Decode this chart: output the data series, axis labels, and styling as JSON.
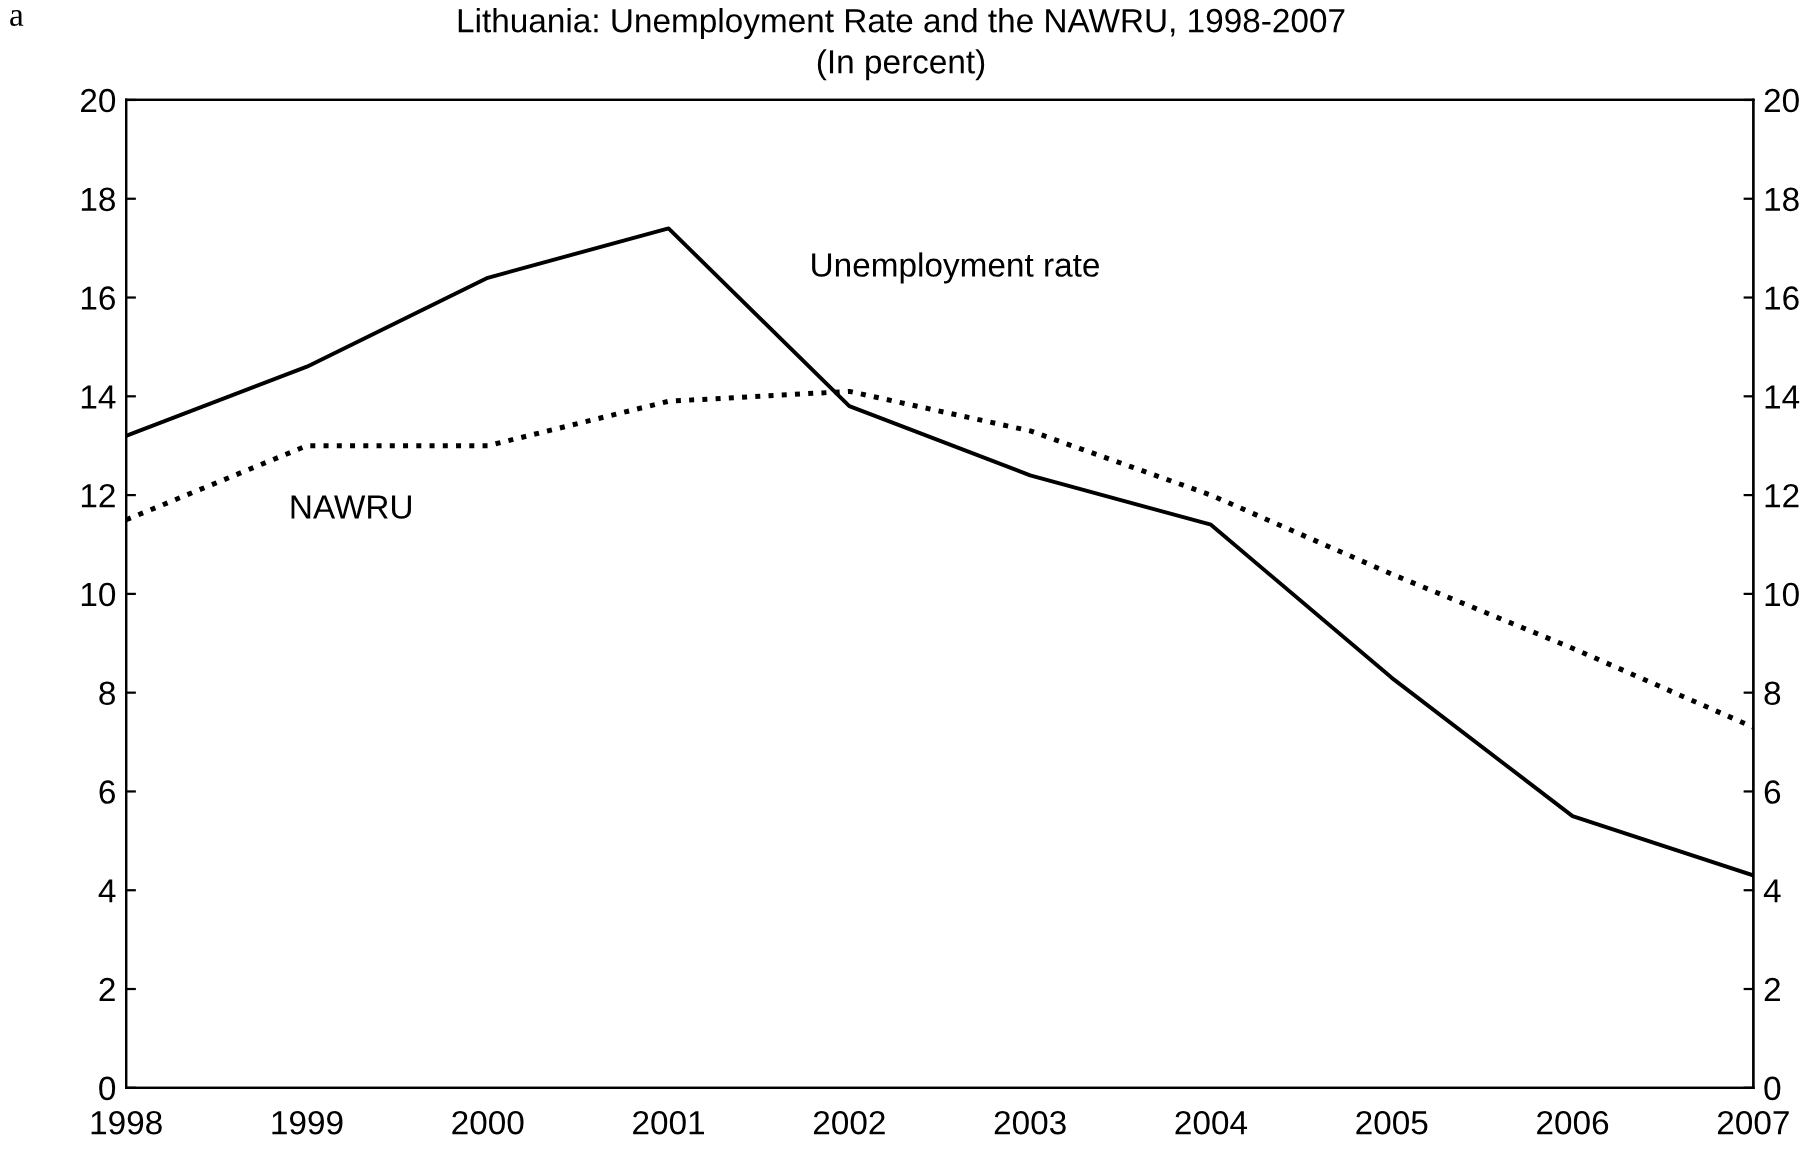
{
  "chart_data": {
    "type": "line",
    "title": "Lithuania: Unemployment Rate and the NAWRU, 1998-2007",
    "subtitle": "(In percent)",
    "x": [
      1998,
      1999,
      2000,
      2001,
      2002,
      2003,
      2004,
      2005,
      2006,
      2007
    ],
    "xlim": [
      1998,
      2007
    ],
    "xticks": [
      1998,
      1999,
      2000,
      2001,
      2002,
      2003,
      2004,
      2005,
      2006,
      2007
    ],
    "ylim": [
      0,
      20
    ],
    "yticks": [
      0,
      2,
      4,
      6,
      8,
      10,
      12,
      14,
      16,
      18,
      20
    ],
    "y2lim": [
      0,
      20
    ],
    "y2ticks": [
      0,
      2,
      4,
      6,
      8,
      10,
      12,
      14,
      16,
      18,
      20
    ],
    "series": [
      {
        "name": "Unemployment rate",
        "color": "#000000",
        "line_style": "solid",
        "values": [
          13.2,
          14.6,
          16.4,
          17.4,
          13.8,
          12.4,
          11.4,
          8.3,
          5.5,
          4.3
        ]
      },
      {
        "name": "NAWRU",
        "color": "#000000",
        "line_style": "dotted",
        "values": [
          11.5,
          13.0,
          13.0,
          13.9,
          14.1,
          13.3,
          12.0,
          10.4,
          8.9,
          7.3
        ]
      }
    ],
    "annotations": [
      "a"
    ],
    "grid": false,
    "legend": false,
    "marker": "none"
  }
}
